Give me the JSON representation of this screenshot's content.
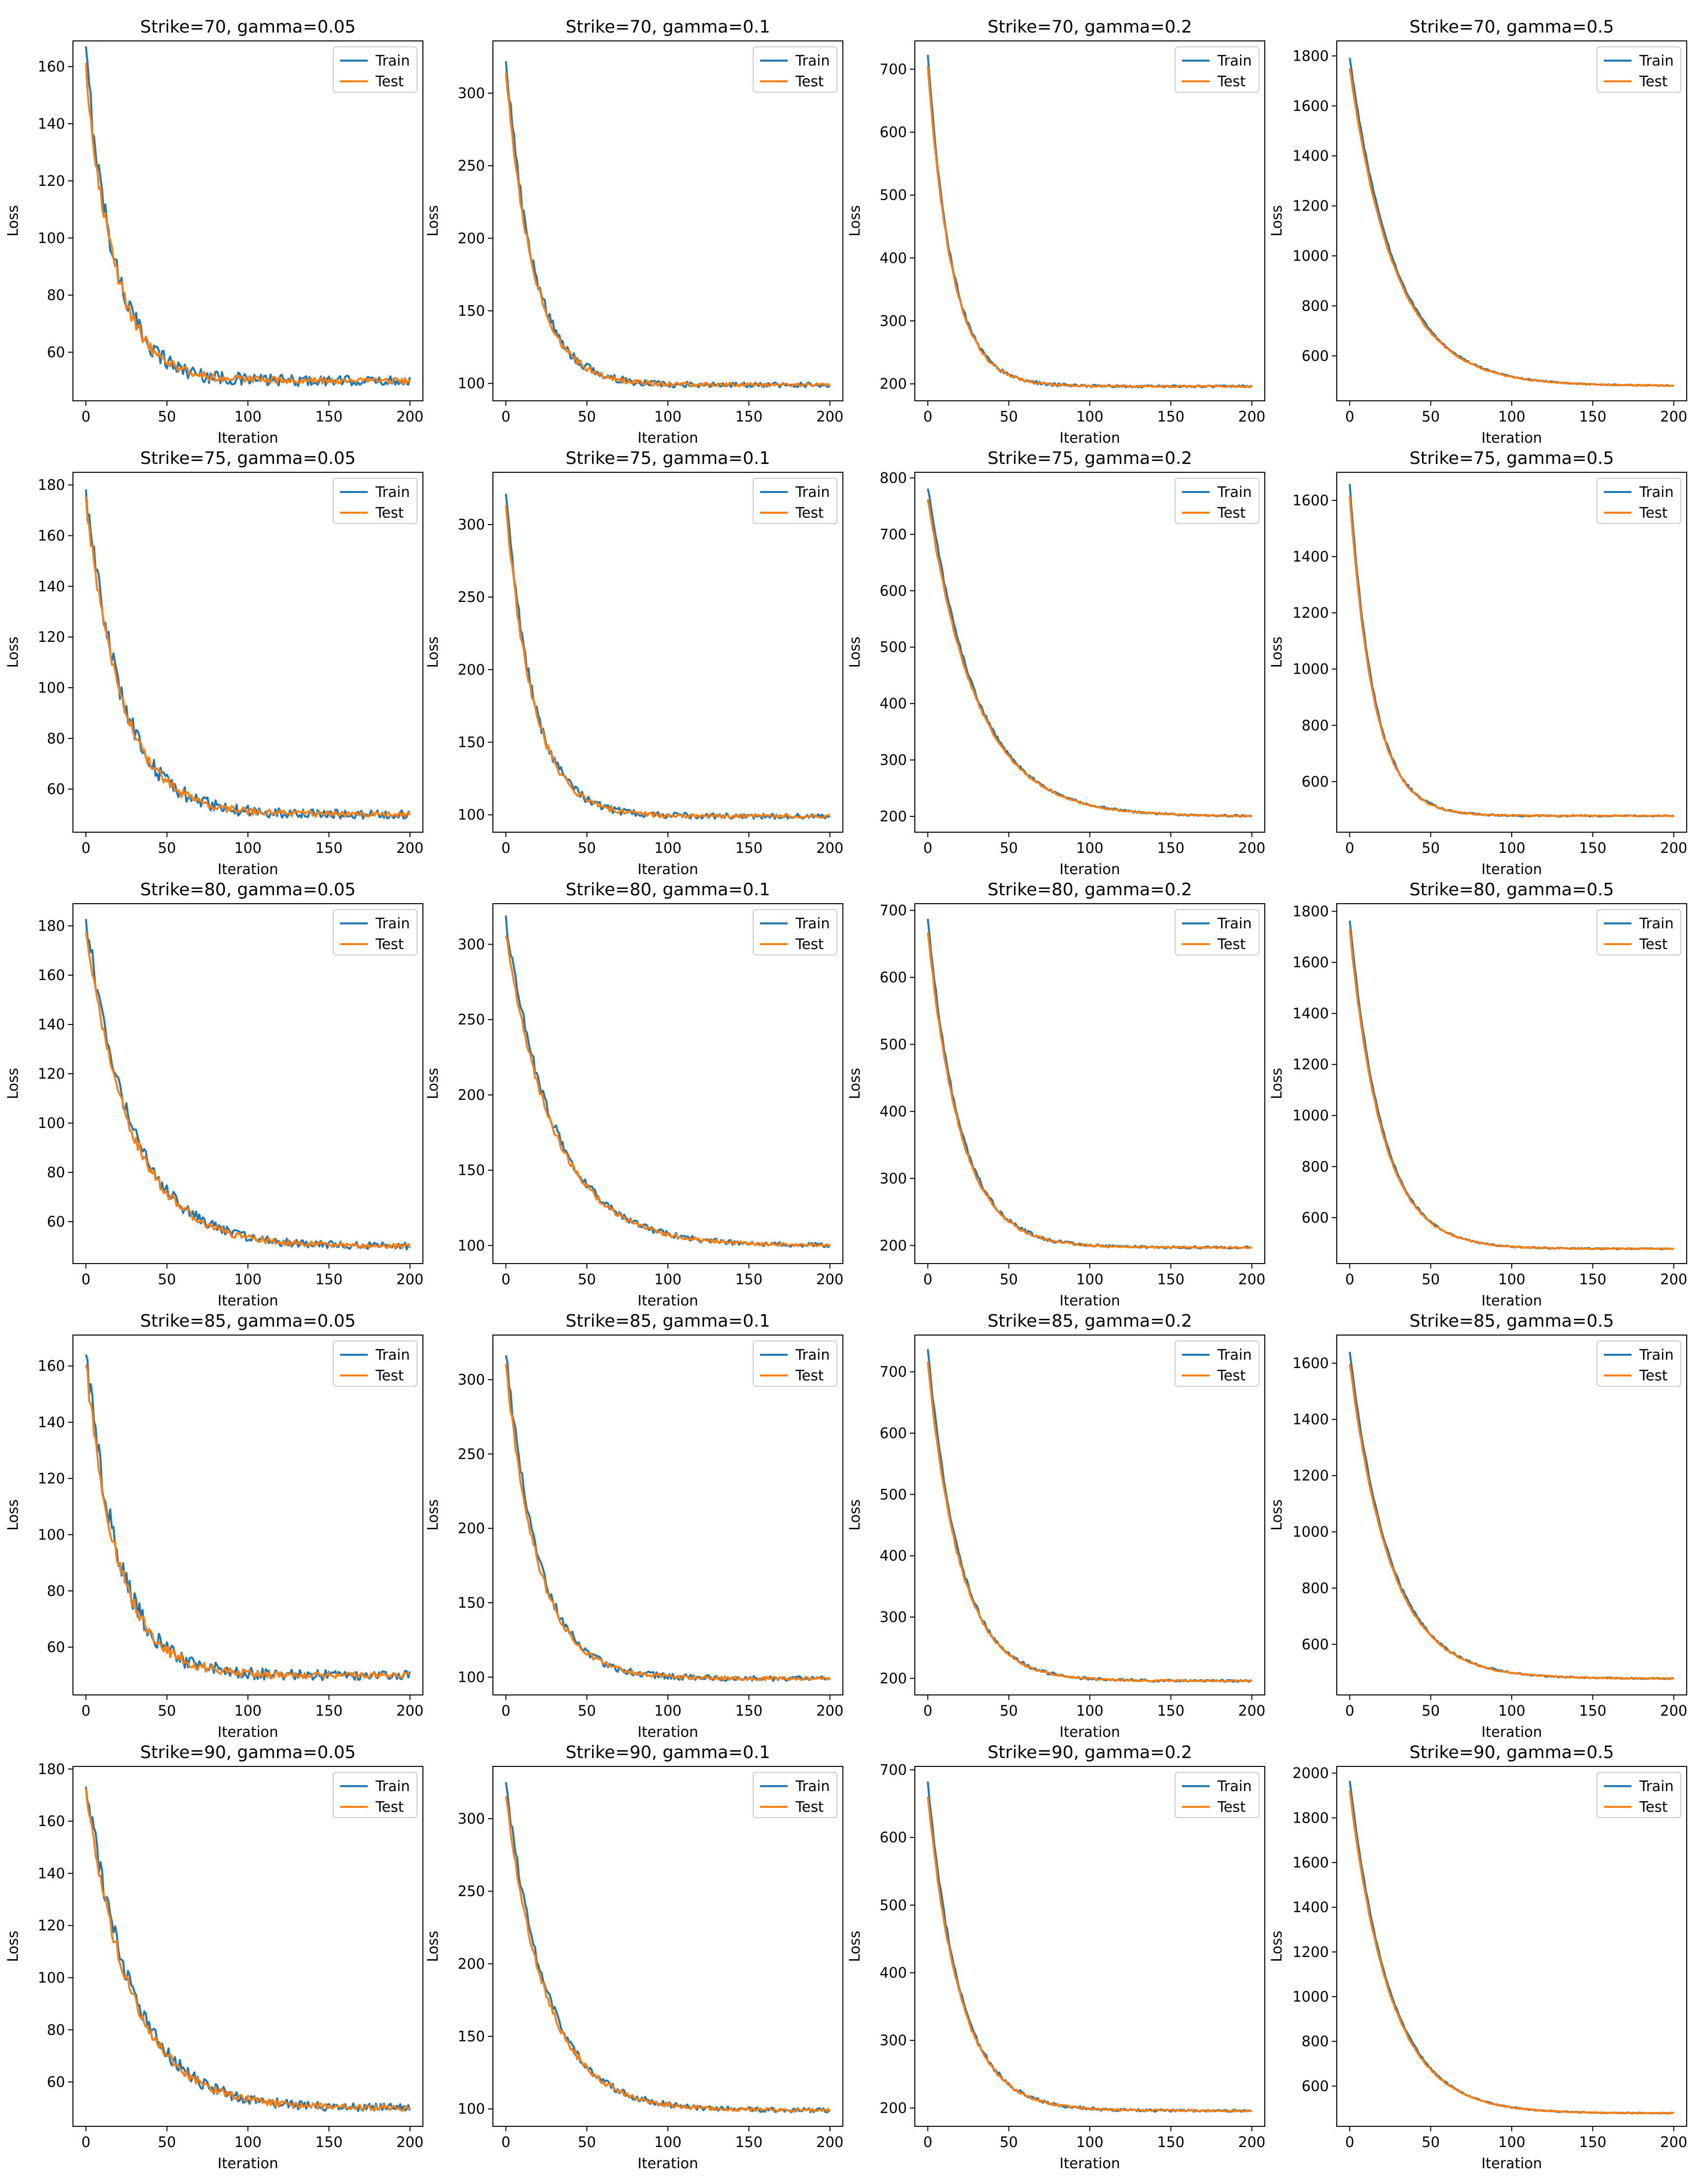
{
  "chart_data": [
    {
      "type": "line",
      "title": "Strike=70, gamma=0.05",
      "xlabel": "Iteration",
      "ylabel": "Loss",
      "xlim": [
        -8,
        208
      ],
      "ylim": [
        43,
        169
      ],
      "xticks": [
        0,
        50,
        100,
        150,
        200
      ],
      "yticks": [
        60,
        80,
        100,
        120,
        140,
        160
      ],
      "legend": "upper-right",
      "grid": false,
      "series": [
        {
          "name": "Train",
          "color": "#1f77b4",
          "start": 164,
          "end": 50,
          "tau": 18,
          "noise": 1.5
        },
        {
          "name": "Test",
          "color": "#ff7f0e",
          "start": 159,
          "end": 50,
          "tau": 18,
          "noise": 0.9
        }
      ]
    },
    {
      "type": "line",
      "title": "Strike=70, gamma=0.1",
      "xlabel": "Iteration",
      "ylabel": "Loss",
      "xlim": [
        -8,
        208
      ],
      "ylim": [
        88,
        336
      ],
      "xticks": [
        0,
        50,
        100,
        150,
        200
      ],
      "yticks": [
        100,
        150,
        200,
        250,
        300
      ],
      "legend": "upper-right",
      "grid": false,
      "series": [
        {
          "name": "Train",
          "color": "#1f77b4",
          "start": 325,
          "end": 99,
          "tau": 17,
          "noise": 1.5
        },
        {
          "name": "Test",
          "color": "#ff7f0e",
          "start": 315,
          "end": 99,
          "tau": 17,
          "noise": 1.0
        }
      ]
    },
    {
      "type": "line",
      "title": "Strike=70, gamma=0.2",
      "xlabel": "Iteration",
      "ylabel": "Loss",
      "xlim": [
        -8,
        208
      ],
      "ylim": [
        173,
        745
      ],
      "xticks": [
        0,
        50,
        100,
        150,
        200
      ],
      "yticks": [
        200,
        300,
        400,
        500,
        600,
        700
      ],
      "legend": "upper-right",
      "grid": false,
      "series": [
        {
          "name": "Train",
          "color": "#1f77b4",
          "start": 720,
          "end": 196,
          "tau": 15,
          "noise": 1.5
        },
        {
          "name": "Test",
          "color": "#ff7f0e",
          "start": 705,
          "end": 196,
          "tau": 15,
          "noise": 1.0
        }
      ]
    },
    {
      "type": "line",
      "title": "Strike=70, gamma=0.5",
      "xlabel": "Iteration",
      "ylabel": "Loss",
      "xlim": [
        -8,
        208
      ],
      "ylim": [
        420,
        1860
      ],
      "xticks": [
        0,
        50,
        100,
        150,
        200
      ],
      "yticks": [
        600,
        800,
        1000,
        1200,
        1400,
        1600,
        1800
      ],
      "legend": "upper-right",
      "grid": false,
      "series": [
        {
          "name": "Train",
          "color": "#1f77b4",
          "start": 1795,
          "end": 480,
          "tau": 28,
          "noise": 2.0
        },
        {
          "name": "Test",
          "color": "#ff7f0e",
          "start": 1750,
          "end": 480,
          "tau": 28,
          "noise": 1.5
        }
      ]
    },
    {
      "type": "line",
      "title": "Strike=75, gamma=0.05",
      "xlabel": "Iteration",
      "ylabel": "Loss",
      "xlim": [
        -8,
        208
      ],
      "ylim": [
        43,
        185
      ],
      "xticks": [
        0,
        50,
        100,
        150,
        200
      ],
      "yticks": [
        60,
        80,
        100,
        120,
        140,
        160,
        180
      ],
      "legend": "upper-right",
      "grid": false,
      "series": [
        {
          "name": "Train",
          "color": "#1f77b4",
          "start": 179,
          "end": 50,
          "tau": 22,
          "noise": 1.5
        },
        {
          "name": "Test",
          "color": "#ff7f0e",
          "start": 174,
          "end": 50,
          "tau": 22,
          "noise": 0.9
        }
      ]
    },
    {
      "type": "line",
      "title": "Strike=75, gamma=0.1",
      "xlabel": "Iteration",
      "ylabel": "Loss",
      "xlim": [
        -8,
        208
      ],
      "ylim": [
        88,
        336
      ],
      "xticks": [
        0,
        50,
        100,
        150,
        200
      ],
      "yticks": [
        100,
        150,
        200,
        250,
        300
      ],
      "legend": "upper-right",
      "grid": false,
      "series": [
        {
          "name": "Train",
          "color": "#1f77b4",
          "start": 323,
          "end": 99,
          "tau": 17,
          "noise": 1.5
        },
        {
          "name": "Test",
          "color": "#ff7f0e",
          "start": 313,
          "end": 99,
          "tau": 17,
          "noise": 1.0
        }
      ]
    },
    {
      "type": "line",
      "title": "Strike=75, gamma=0.2",
      "xlabel": "Iteration",
      "ylabel": "Loss",
      "xlim": [
        -8,
        208
      ],
      "ylim": [
        172,
        810
      ],
      "xticks": [
        0,
        50,
        100,
        150,
        200
      ],
      "yticks": [
        200,
        300,
        400,
        500,
        600,
        700,
        800
      ],
      "legend": "upper-right",
      "grid": false,
      "series": [
        {
          "name": "Train",
          "color": "#1f77b4",
          "start": 783,
          "end": 200,
          "tau": 30,
          "noise": 1.5
        },
        {
          "name": "Test",
          "color": "#ff7f0e",
          "start": 765,
          "end": 200,
          "tau": 30,
          "noise": 1.0
        }
      ]
    },
    {
      "type": "line",
      "title": "Strike=75, gamma=0.5",
      "xlabel": "Iteration",
      "ylabel": "Loss",
      "xlim": [
        -8,
        208
      ],
      "ylim": [
        420,
        1700
      ],
      "xticks": [
        0,
        50,
        100,
        150,
        200
      ],
      "yticks": [
        600,
        800,
        1000,
        1200,
        1400,
        1600
      ],
      "legend": "upper-right",
      "grid": false,
      "series": [
        {
          "name": "Train",
          "color": "#1f77b4",
          "start": 1655,
          "end": 478,
          "tau": 15,
          "noise": 2.0
        },
        {
          "name": "Test",
          "color": "#ff7f0e",
          "start": 1615,
          "end": 478,
          "tau": 15,
          "noise": 1.5
        }
      ]
    },
    {
      "type": "line",
      "title": "Strike=80, gamma=0.05",
      "xlabel": "Iteration",
      "ylabel": "Loss",
      "xlim": [
        -8,
        208
      ],
      "ylim": [
        43,
        189
      ],
      "xticks": [
        0,
        50,
        100,
        150,
        200
      ],
      "yticks": [
        60,
        80,
        100,
        120,
        140,
        160,
        180
      ],
      "legend": "upper-right",
      "grid": false,
      "series": [
        {
          "name": "Train",
          "color": "#1f77b4",
          "start": 184,
          "end": 50,
          "tau": 28,
          "noise": 1.3
        },
        {
          "name": "Test",
          "color": "#ff7f0e",
          "start": 179,
          "end": 50,
          "tau": 28,
          "noise": 0.9
        }
      ]
    },
    {
      "type": "line",
      "title": "Strike=80, gamma=0.1",
      "xlabel": "Iteration",
      "ylabel": "Loss",
      "xlim": [
        -8,
        208
      ],
      "ylim": [
        88,
        327
      ],
      "xticks": [
        0,
        50,
        100,
        150,
        200
      ],
      "yticks": [
        100,
        150,
        200,
        250,
        300
      ],
      "legend": "upper-right",
      "grid": false,
      "series": [
        {
          "name": "Train",
          "color": "#1f77b4",
          "start": 315,
          "end": 100,
          "tau": 30,
          "noise": 1.3
        },
        {
          "name": "Test",
          "color": "#ff7f0e",
          "start": 306,
          "end": 100,
          "tau": 30,
          "noise": 0.9
        }
      ]
    },
    {
      "type": "line",
      "title": "Strike=80, gamma=0.2",
      "xlabel": "Iteration",
      "ylabel": "Loss",
      "xlim": [
        -8,
        208
      ],
      "ylim": [
        173,
        710
      ],
      "xticks": [
        0,
        50,
        100,
        150,
        200
      ],
      "yticks": [
        200,
        300,
        400,
        500,
        600,
        700
      ],
      "legend": "upper-right",
      "grid": false,
      "series": [
        {
          "name": "Train",
          "color": "#1f77b4",
          "start": 688,
          "end": 197,
          "tau": 20,
          "noise": 1.5
        },
        {
          "name": "Test",
          "color": "#ff7f0e",
          "start": 670,
          "end": 197,
          "tau": 20,
          "noise": 1.0
        }
      ]
    },
    {
      "type": "line",
      "title": "Strike=80, gamma=0.5",
      "xlabel": "Iteration",
      "ylabel": "Loss",
      "xlim": [
        -8,
        208
      ],
      "ylim": [
        420,
        1830
      ],
      "xticks": [
        0,
        50,
        100,
        150,
        200
      ],
      "yticks": [
        600,
        800,
        1000,
        1200,
        1400,
        1600,
        1800
      ],
      "legend": "upper-right",
      "grid": false,
      "series": [
        {
          "name": "Train",
          "color": "#1f77b4",
          "start": 1770,
          "end": 478,
          "tau": 20,
          "noise": 2.0
        },
        {
          "name": "Test",
          "color": "#ff7f0e",
          "start": 1725,
          "end": 478,
          "tau": 20,
          "noise": 1.5
        }
      ]
    },
    {
      "type": "line",
      "title": "Strike=85, gamma=0.05",
      "xlabel": "Iteration",
      "ylabel": "Loss",
      "xlim": [
        -8,
        208
      ],
      "ylim": [
        43,
        171
      ],
      "xticks": [
        0,
        50,
        100,
        150,
        200
      ],
      "yticks": [
        60,
        80,
        100,
        120,
        140,
        160
      ],
      "legend": "upper-right",
      "grid": false,
      "series": [
        {
          "name": "Train",
          "color": "#1f77b4",
          "start": 166,
          "end": 50,
          "tau": 20,
          "noise": 1.5
        },
        {
          "name": "Test",
          "color": "#ff7f0e",
          "start": 161,
          "end": 50,
          "tau": 20,
          "noise": 0.9
        }
      ]
    },
    {
      "type": "line",
      "title": "Strike=85, gamma=0.1",
      "xlabel": "Iteration",
      "ylabel": "Loss",
      "xlim": [
        -8,
        208
      ],
      "ylim": [
        88,
        330
      ],
      "xticks": [
        0,
        50,
        100,
        150,
        200
      ],
      "yticks": [
        100,
        150,
        200,
        250,
        300
      ],
      "legend": "upper-right",
      "grid": false,
      "series": [
        {
          "name": "Train",
          "color": "#1f77b4",
          "start": 320,
          "end": 99,
          "tau": 20,
          "noise": 1.4
        },
        {
          "name": "Test",
          "color": "#ff7f0e",
          "start": 310,
          "end": 99,
          "tau": 20,
          "noise": 1.0
        }
      ]
    },
    {
      "type": "line",
      "title": "Strike=85, gamma=0.2",
      "xlabel": "Iteration",
      "ylabel": "Loss",
      "xlim": [
        -8,
        208
      ],
      "ylim": [
        173,
        760
      ],
      "xticks": [
        0,
        50,
        100,
        150,
        200
      ],
      "yticks": [
        200,
        300,
        400,
        500,
        600,
        700
      ],
      "legend": "upper-right",
      "grid": false,
      "series": [
        {
          "name": "Train",
          "color": "#1f77b4",
          "start": 735,
          "end": 196,
          "tau": 20,
          "noise": 1.5
        },
        {
          "name": "Test",
          "color": "#ff7f0e",
          "start": 715,
          "end": 196,
          "tau": 20,
          "noise": 1.0
        }
      ]
    },
    {
      "type": "line",
      "title": "Strike=85, gamma=0.5",
      "xlabel": "Iteration",
      "ylabel": "Loss",
      "xlim": [
        -8,
        208
      ],
      "ylim": [
        420,
        1700
      ],
      "xticks": [
        0,
        50,
        100,
        150,
        200
      ],
      "yticks": [
        600,
        800,
        1000,
        1200,
        1400,
        1600
      ],
      "legend": "upper-right",
      "grid": false,
      "series": [
        {
          "name": "Train",
          "color": "#1f77b4",
          "start": 1640,
          "end": 478,
          "tau": 25,
          "noise": 2.0
        },
        {
          "name": "Test",
          "color": "#ff7f0e",
          "start": 1600,
          "end": 478,
          "tau": 25,
          "noise": 1.5
        }
      ]
    },
    {
      "type": "line",
      "title": "Strike=90, gamma=0.05",
      "xlabel": "Iteration",
      "ylabel": "Loss",
      "xlim": [
        -8,
        208
      ],
      "ylim": [
        43,
        181
      ],
      "xticks": [
        0,
        50,
        100,
        150,
        200
      ],
      "yticks": [
        60,
        80,
        100,
        120,
        140,
        160,
        180
      ],
      "legend": "upper-right",
      "grid": false,
      "series": [
        {
          "name": "Train",
          "color": "#1f77b4",
          "start": 176,
          "end": 50,
          "tau": 28,
          "noise": 1.4
        },
        {
          "name": "Test",
          "color": "#ff7f0e",
          "start": 171,
          "end": 50,
          "tau": 28,
          "noise": 0.9
        }
      ]
    },
    {
      "type": "line",
      "title": "Strike=90, gamma=0.1",
      "xlabel": "Iteration",
      "ylabel": "Loss",
      "xlim": [
        -8,
        208
      ],
      "ylim": [
        88,
        336
      ],
      "xticks": [
        0,
        50,
        100,
        150,
        200
      ],
      "yticks": [
        100,
        150,
        200,
        250,
        300
      ],
      "legend": "upper-right",
      "grid": false,
      "series": [
        {
          "name": "Train",
          "color": "#1f77b4",
          "start": 325,
          "end": 99,
          "tau": 25,
          "noise": 1.4
        },
        {
          "name": "Test",
          "color": "#ff7f0e",
          "start": 315,
          "end": 99,
          "tau": 25,
          "noise": 1.0
        }
      ]
    },
    {
      "type": "line",
      "title": "Strike=90, gamma=0.2",
      "xlabel": "Iteration",
      "ylabel": "Loss",
      "xlim": [
        -8,
        208
      ],
      "ylim": [
        173,
        705
      ],
      "xticks": [
        0,
        50,
        100,
        150,
        200
      ],
      "yticks": [
        200,
        300,
        400,
        500,
        600,
        700
      ],
      "legend": "upper-right",
      "grid": false,
      "series": [
        {
          "name": "Train",
          "color": "#1f77b4",
          "start": 678,
          "end": 196,
          "tau": 20,
          "noise": 1.5
        },
        {
          "name": "Test",
          "color": "#ff7f0e",
          "start": 660,
          "end": 196,
          "tau": 20,
          "noise": 1.0
        }
      ]
    },
    {
      "type": "line",
      "title": "Strike=90, gamma=0.5",
      "xlabel": "Iteration",
      "ylabel": "Loss",
      "xlim": [
        -8,
        208
      ],
      "ylim": [
        420,
        2030
      ],
      "xticks": [
        0,
        50,
        100,
        150,
        200
      ],
      "yticks": [
        600,
        800,
        1000,
        1200,
        1400,
        1600,
        1800,
        2000
      ],
      "legend": "upper-right",
      "grid": false,
      "series": [
        {
          "name": "Train",
          "color": "#1f77b4",
          "start": 1965,
          "end": 478,
          "tau": 25,
          "noise": 2.0
        },
        {
          "name": "Test",
          "color": "#ff7f0e",
          "start": 1920,
          "end": 478,
          "tau": 25,
          "noise": 1.5
        }
      ]
    }
  ]
}
